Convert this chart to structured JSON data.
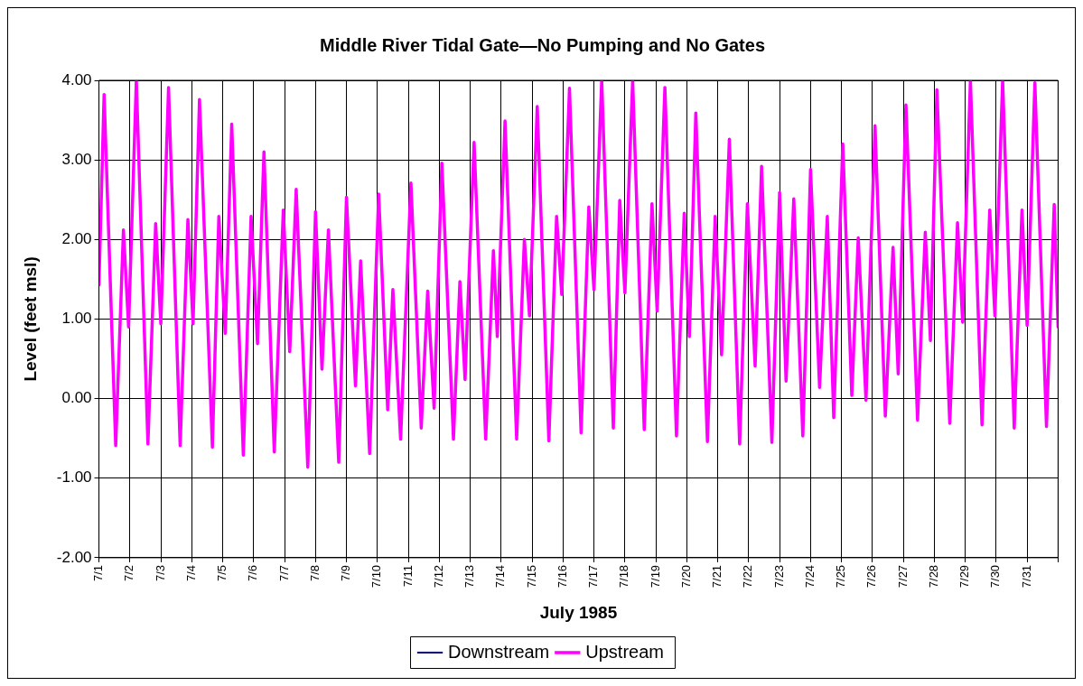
{
  "chart_data": {
    "type": "line",
    "title": "Middle River Tidal Gate—No Pumping and No Gates",
    "xlabel": "July 1985",
    "ylabel": "Level (feet msl)",
    "x": [
      "1985-07-01T00:00",
      "1985-07-01T04:00",
      "1985-07-01T13:00",
      "1985-07-01T19:00",
      "1985-07-01T23:00",
      "1985-07-02T05:00",
      "1985-07-02T14:00",
      "1985-07-02T20:00",
      "1985-07-03T00:00",
      "1985-07-03T06:00",
      "1985-07-03T15:00",
      "1985-07-03T21:00",
      "1985-07-04T01:00",
      "1985-07-04T06:00",
      "1985-07-04T16:00",
      "1985-07-04T21:00",
      "1985-07-05T02:00",
      "1985-07-05T07:00",
      "1985-07-05T16:00",
      "1985-07-05T22:00",
      "1985-07-06T03:00",
      "1985-07-06T08:00",
      "1985-07-06T16:00",
      "1985-07-06T23:00",
      "1985-07-07T04:00",
      "1985-07-07T09:00",
      "1985-07-07T18:00",
      "1985-07-08T00:00",
      "1985-07-08T05:00",
      "1985-07-08T10:00",
      "1985-07-08T18:00",
      "1985-07-09T00:00",
      "1985-07-09T07:00",
      "1985-07-09T11:00",
      "1985-07-09T18:00",
      "1985-07-10T01:00",
      "1985-07-10T08:00",
      "1985-07-10T12:00",
      "1985-07-10T18:00",
      "1985-07-11T02:00",
      "1985-07-11T10:00",
      "1985-07-11T15:00",
      "1985-07-11T20:00",
      "1985-07-12T02:00",
      "1985-07-12T11:00",
      "1985-07-12T16:00",
      "1985-07-12T20:00",
      "1985-07-13T03:00",
      "1985-07-13T12:00",
      "1985-07-13T18:00",
      "1985-07-13T21:00",
      "1985-07-14T03:00",
      "1985-07-14T12:00",
      "1985-07-14T18:00",
      "1985-07-14T22:00",
      "1985-07-15T04:00",
      "1985-07-15T13:00",
      "1985-07-15T19:00",
      "1985-07-15T23:00",
      "1985-07-16T05:00",
      "1985-07-16T14:00",
      "1985-07-16T20:00",
      "1985-07-17T00:00",
      "1985-07-17T06:00",
      "1985-07-17T15:00",
      "1985-07-17T20:00",
      "1985-07-18T00:00",
      "1985-07-18T06:00",
      "1985-07-18T15:00",
      "1985-07-18T21:00",
      "1985-07-19T01:00",
      "1985-07-19T07:00",
      "1985-07-19T16:00",
      "1985-07-19T22:00",
      "1985-07-20T02:00",
      "1985-07-20T07:00",
      "1985-07-20T16:00",
      "1985-07-20T22:00",
      "1985-07-21T03:00",
      "1985-07-21T09:00",
      "1985-07-21T17:00",
      "1985-07-21T23:00",
      "1985-07-22T05:00",
      "1985-07-22T10:00",
      "1985-07-22T18:00",
      "1985-07-23T00:00",
      "1985-07-23T05:00",
      "1985-07-23T11:00",
      "1985-07-23T18:00",
      "1985-07-24T00:00",
      "1985-07-24T07:00",
      "1985-07-24T13:00",
      "1985-07-24T18:00",
      "1985-07-25T01:00",
      "1985-07-25T08:00",
      "1985-07-25T13:00",
      "1985-07-25T19:00",
      "1985-07-26T02:00",
      "1985-07-26T10:00",
      "1985-07-26T16:00",
      "1985-07-26T20:00",
      "1985-07-27T02:00",
      "1985-07-27T11:00",
      "1985-07-27T17:00",
      "1985-07-27T21:00",
      "1985-07-28T02:00",
      "1985-07-28T12:00",
      "1985-07-28T18:00",
      "1985-07-28T22:00",
      "1985-07-29T04:00",
      "1985-07-29T13:00",
      "1985-07-29T19:00",
      "1985-07-29T23:00",
      "1985-07-30T05:00",
      "1985-07-30T14:00",
      "1985-07-30T20:00",
      "1985-07-31T00:00",
      "1985-07-31T06:00",
      "1985-07-31T15:00",
      "1985-07-31T21:00",
      "1985-08-01T00:00"
    ],
    "series": [
      {
        "name": "Downstream",
        "color": "#000080",
        "values": [
          null,
          null,
          null,
          null,
          null,
          null,
          null,
          null,
          null,
          null,
          null,
          null,
          null,
          null,
          null,
          null,
          null,
          null,
          null,
          null,
          null,
          null,
          null,
          null,
          null,
          null,
          null,
          null,
          null,
          null,
          null,
          null,
          null,
          null,
          null,
          null,
          null,
          null,
          null,
          null,
          null,
          null,
          null,
          null,
          null,
          null,
          null,
          null,
          null,
          null,
          null,
          null,
          null,
          null,
          null,
          null,
          null,
          null,
          null,
          null,
          null,
          null,
          null,
          null,
          null,
          null,
          null,
          null,
          null,
          null,
          null,
          null,
          null,
          null,
          null,
          null,
          null,
          null,
          null,
          null,
          null,
          null,
          null,
          null,
          null,
          null,
          null,
          null,
          null,
          null,
          null,
          null,
          null,
          null,
          null,
          null,
          null,
          null,
          null,
          null,
          null,
          null,
          null,
          null,
          null,
          null,
          null,
          null,
          null,
          null,
          null,
          null,
          null,
          null,
          null,
          null,
          null,
          null,
          null,
          null,
          null
        ]
      },
      {
        "name": "Upstream",
        "color": "#ff00ff",
        "values": [
          1.43,
          3.82,
          -0.59,
          2.12,
          0.9,
          4.0,
          -0.57,
          2.2,
          0.94,
          3.91,
          -0.59,
          2.25,
          0.94,
          3.76,
          -0.61,
          2.29,
          0.82,
          3.45,
          -0.71,
          2.29,
          0.69,
          3.1,
          -0.67,
          2.37,
          0.59,
          2.63,
          -0.86,
          2.35,
          0.37,
          2.12,
          -0.8,
          2.53,
          0.16,
          1.73,
          -0.69,
          2.57,
          -0.14,
          1.37,
          -0.51,
          2.71,
          -0.37,
          1.35,
          -0.12,
          2.96,
          -0.51,
          1.47,
          0.24,
          3.22,
          -0.51,
          1.86,
          0.78,
          3.49,
          -0.51,
          2.0,
          1.04,
          3.67,
          -0.53,
          2.29,
          1.31,
          3.9,
          -0.43,
          2.41,
          1.37,
          4.0,
          -0.37,
          2.49,
          1.33,
          4.0,
          -0.39,
          2.45,
          1.1,
          3.91,
          -0.47,
          2.33,
          0.78,
          3.59,
          -0.54,
          2.29,
          0.55,
          3.26,
          -0.57,
          2.45,
          0.41,
          2.92,
          -0.55,
          2.59,
          0.22,
          2.51,
          -0.47,
          2.88,
          0.14,
          2.29,
          -0.24,
          3.2,
          0.04,
          2.02,
          -0.02,
          3.43,
          -0.22,
          1.9,
          0.31,
          3.69,
          -0.27,
          2.09,
          0.73,
          3.88,
          -0.31,
          2.21,
          0.96,
          4.0,
          -0.33,
          2.37,
          1.04,
          4.0,
          -0.37,
          2.37,
          0.92,
          3.97,
          -0.35,
          2.44,
          0.9
        ]
      }
    ],
    "xlim": [
      "1985-07-01",
      "1985-08-01"
    ],
    "xticks": [
      {
        "value": "1985-07-01",
        "label": "7/1"
      },
      {
        "value": "1985-07-02",
        "label": "7/2"
      },
      {
        "value": "1985-07-03",
        "label": "7/3"
      },
      {
        "value": "1985-07-04",
        "label": "7/4"
      },
      {
        "value": "1985-07-05",
        "label": "7/5"
      },
      {
        "value": "1985-07-06",
        "label": "7/6"
      },
      {
        "value": "1985-07-07",
        "label": "7/7"
      },
      {
        "value": "1985-07-08",
        "label": "7/8"
      },
      {
        "value": "1985-07-09",
        "label": "7/9"
      },
      {
        "value": "1985-07-10",
        "label": "7/10"
      },
      {
        "value": "1985-07-11",
        "label": "7/11"
      },
      {
        "value": "1985-07-12",
        "label": "7/12"
      },
      {
        "value": "1985-07-13",
        "label": "7/13"
      },
      {
        "value": "1985-07-14",
        "label": "7/14"
      },
      {
        "value": "1985-07-15",
        "label": "7/15"
      },
      {
        "value": "1985-07-16",
        "label": "7/16"
      },
      {
        "value": "1985-07-17",
        "label": "7/17"
      },
      {
        "value": "1985-07-18",
        "label": "7/18"
      },
      {
        "value": "1985-07-19",
        "label": "7/19"
      },
      {
        "value": "1985-07-20",
        "label": "7/20"
      },
      {
        "value": "1985-07-21",
        "label": "7/21"
      },
      {
        "value": "1985-07-22",
        "label": "7/22"
      },
      {
        "value": "1985-07-23",
        "label": "7/23"
      },
      {
        "value": "1985-07-24",
        "label": "7/24"
      },
      {
        "value": "1985-07-25",
        "label": "7/25"
      },
      {
        "value": "1985-07-26",
        "label": "7/26"
      },
      {
        "value": "1985-07-27",
        "label": "7/27"
      },
      {
        "value": "1985-07-28",
        "label": "7/28"
      },
      {
        "value": "1985-07-29",
        "label": "7/29"
      },
      {
        "value": "1985-07-30",
        "label": "7/30"
      },
      {
        "value": "1985-07-31",
        "label": "7/31"
      },
      {
        "value": "1985-08-01",
        "label": null
      }
    ],
    "ylim": [
      -2,
      4
    ],
    "yticks": [
      {
        "value": -2,
        "label": "-2.00"
      },
      {
        "value": -1,
        "label": "-1.00"
      },
      {
        "value": 0,
        "label": "0.00"
      },
      {
        "value": 1,
        "label": "1.00"
      },
      {
        "value": 2,
        "label": "2.00"
      },
      {
        "value": 3,
        "label": "3.00"
      },
      {
        "value": 4,
        "label": "4.00"
      }
    ],
    "grid": true,
    "legend": "bottom",
    "marker": "none",
    "line_style": "solid"
  }
}
